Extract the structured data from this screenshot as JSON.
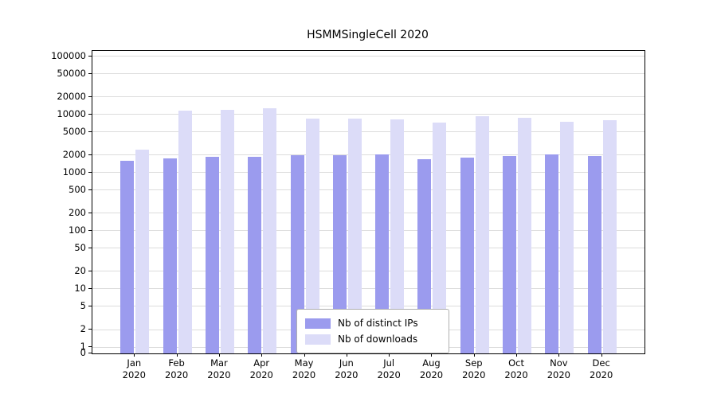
{
  "chart_data": {
    "type": "bar",
    "title": "HSMMSingleCell 2020",
    "categories": [
      "Jan 2020",
      "Feb 2020",
      "Mar 2020",
      "Apr 2020",
      "May 2020",
      "Jun 2020",
      "Jul 2020",
      "Aug 2020",
      "Sep 2020",
      "Oct 2020",
      "Nov 2020",
      "Dec 2020"
    ],
    "series": [
      {
        "name": "Nb of distinct IPs",
        "color": "#9b9bee",
        "values": [
          1600,
          1750,
          1850,
          1900,
          2000,
          2000,
          2050,
          1700,
          1800,
          1950,
          2050,
          1950
        ]
      },
      {
        "name": "Nb of downloads",
        "color": "#dcdcf8",
        "values": [
          2500,
          11500,
          12000,
          13000,
          8500,
          8500,
          8200,
          7200,
          9400,
          8700,
          7400,
          7900
        ]
      }
    ],
    "yscale": "symlog",
    "yticks": [
      0,
      1,
      2,
      5,
      10,
      20,
      50,
      100,
      200,
      500,
      1000,
      2000,
      5000,
      10000,
      20000,
      50000,
      100000
    ],
    "ylim": [
      0,
      124000
    ],
    "xlabel": "",
    "ylabel": "",
    "grid": true,
    "legend_position": "lower center"
  }
}
